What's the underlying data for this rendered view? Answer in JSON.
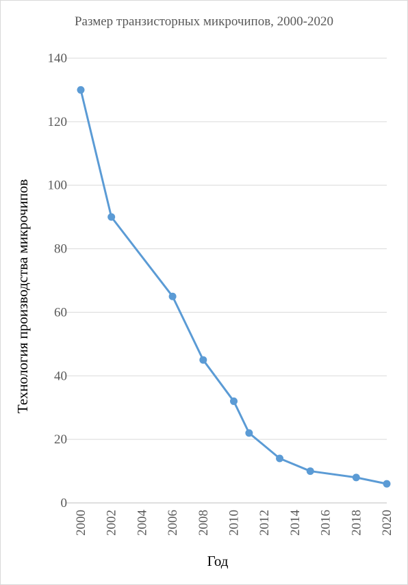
{
  "chart_data": {
    "type": "line",
    "title": "Размер транзисторных микрочипов, 2000-2020",
    "xlabel": "Год",
    "ylabel": "Технология производства микрочипов",
    "x": [
      2000,
      2002,
      2006,
      2008,
      2010,
      2011,
      2013,
      2015,
      2018,
      2020
    ],
    "series": [
      {
        "values": [
          130,
          90,
          65,
          45,
          32,
          22,
          14,
          10,
          8,
          6
        ]
      }
    ],
    "xlim": [
      2000,
      2020
    ],
    "ylim": [
      0,
      140
    ],
    "x_ticks": [
      "2000",
      "2002",
      "2004",
      "2006",
      "2008",
      "2010",
      "2012",
      "2014",
      "2016",
      "2018",
      "2020"
    ],
    "y_ticks": [
      "0",
      "20",
      "40",
      "60",
      "80",
      "100",
      "120",
      "140"
    ],
    "grid": "horizontal",
    "legend": "none",
    "colors": {
      "series": "#5b9bd5"
    }
  }
}
